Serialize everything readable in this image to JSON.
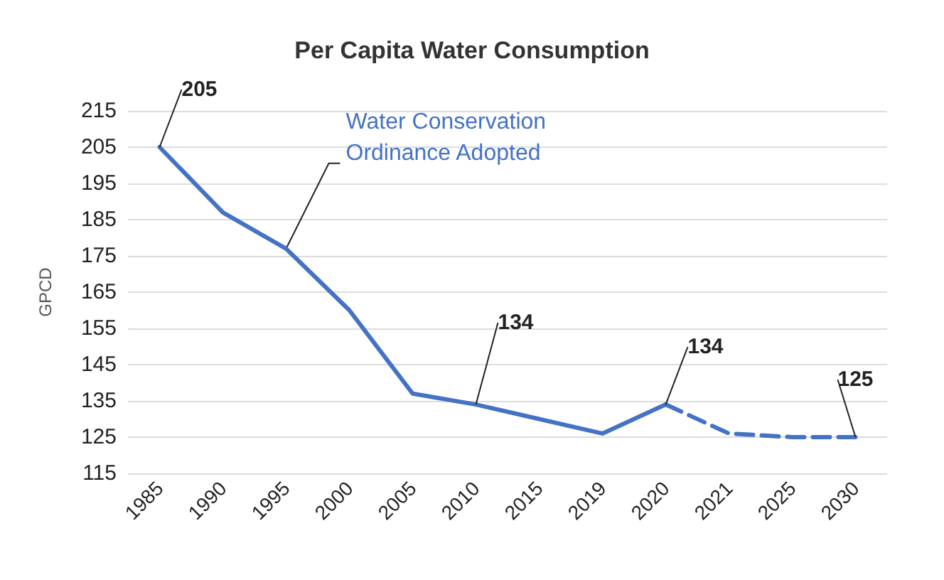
{
  "chart_data": {
    "type": "line",
    "title": "Per Capita Water Consumption",
    "ylabel": "GPCD",
    "categories": [
      "1985",
      "1990",
      "1995",
      "2000",
      "2005",
      "2010",
      "2015",
      "2019",
      "2020",
      "2021",
      "2025",
      "2030"
    ],
    "series": [
      {
        "color": "#4472c4",
        "line_style": "solid",
        "values": [
          205,
          187,
          177,
          160,
          137,
          134,
          130,
          126,
          134,
          null,
          null,
          null
        ],
        "value_labels": [
          "205",
          null,
          null,
          null,
          null,
          "134",
          null,
          null,
          "134",
          null,
          null,
          null
        ]
      },
      {
        "color": "#4472c4",
        "line_style": "dashed",
        "values": [
          null,
          null,
          null,
          null,
          null,
          null,
          null,
          null,
          134,
          126,
          125,
          125
        ],
        "value_labels": [
          null,
          null,
          null,
          null,
          null,
          null,
          null,
          null,
          null,
          null,
          null,
          "125"
        ]
      }
    ],
    "annotations": [
      {
        "text": "Water Conservation Ordinance Adopted",
        "x": "1995",
        "y": 177
      }
    ],
    "ylim": [
      115,
      215
    ],
    "yticks": [
      115,
      125,
      135,
      145,
      155,
      165,
      175,
      185,
      195,
      205,
      215
    ],
    "grid": "y",
    "marker": "none"
  }
}
